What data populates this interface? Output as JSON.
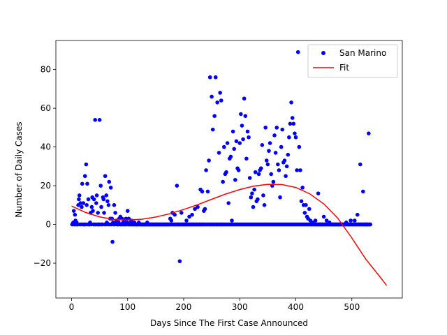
{
  "chart_data": {
    "type": "scatter",
    "xlabel": "Days Since The First Case Announced",
    "ylabel": "Number of Daily Cases",
    "xlim": [
      -28,
      590
    ],
    "ylim": [
      -38,
      95
    ],
    "xticks": [
      0,
      100,
      200,
      300,
      400,
      500
    ],
    "yticks": [
      -20,
      0,
      20,
      40,
      60,
      80
    ],
    "grid": false,
    "legend_position": "top-right",
    "series": [
      {
        "name": "San Marino",
        "kind": "scatter",
        "color": "#0000ff",
        "points": [
          [
            1,
            0
          ],
          [
            3,
            1
          ],
          [
            4,
            7
          ],
          [
            6,
            5
          ],
          [
            7,
            2
          ],
          [
            9,
            1
          ],
          [
            10,
            0
          ],
          [
            12,
            10
          ],
          [
            13,
            13
          ],
          [
            14,
            15
          ],
          [
            16,
            11
          ],
          [
            18,
            9
          ],
          [
            19,
            21
          ],
          [
            21,
            11
          ],
          [
            22,
            0
          ],
          [
            24,
            25
          ],
          [
            26,
            31
          ],
          [
            27,
            10
          ],
          [
            28,
            21
          ],
          [
            30,
            13
          ],
          [
            31,
            0
          ],
          [
            33,
            1
          ],
          [
            34,
            6
          ],
          [
            36,
            9
          ],
          [
            37,
            14
          ],
          [
            38,
            7
          ],
          [
            40,
            13
          ],
          [
            42,
            54
          ],
          [
            44,
            11
          ],
          [
            45,
            15
          ],
          [
            47,
            6
          ],
          [
            48,
            0
          ],
          [
            50,
            54
          ],
          [
            52,
            20
          ],
          [
            53,
            9
          ],
          [
            54,
            0
          ],
          [
            56,
            14
          ],
          [
            57,
            13
          ],
          [
            58,
            6
          ],
          [
            60,
            25
          ],
          [
            62,
            15
          ],
          [
            63,
            1
          ],
          [
            64,
            12
          ],
          [
            66,
            10
          ],
          [
            67,
            22
          ],
          [
            69,
            3
          ],
          [
            70,
            19
          ],
          [
            72,
            3
          ],
          [
            73,
            -9
          ],
          [
            74,
            1
          ],
          [
            76,
            10
          ],
          [
            78,
            6
          ],
          [
            79,
            1
          ],
          [
            80,
            2
          ],
          [
            82,
            0
          ],
          [
            84,
            1
          ],
          [
            85,
            3
          ],
          [
            87,
            4
          ],
          [
            88,
            0
          ],
          [
            90,
            3
          ],
          [
            92,
            1
          ],
          [
            93,
            0
          ],
          [
            95,
            2
          ],
          [
            97,
            3
          ],
          [
            99,
            1
          ],
          [
            100,
            7
          ],
          [
            102,
            3
          ],
          [
            104,
            0
          ],
          [
            105,
            1
          ],
          [
            107,
            2
          ],
          [
            110,
            0
          ],
          [
            112,
            1
          ],
          [
            115,
            0
          ],
          [
            120,
            1
          ],
          [
            125,
            0
          ],
          [
            130,
            0
          ],
          [
            135,
            1
          ],
          [
            140,
            0
          ],
          [
            150,
            0
          ],
          [
            160,
            0
          ],
          [
            170,
            0
          ],
          [
            176,
            3
          ],
          [
            178,
            2
          ],
          [
            180,
            6
          ],
          [
            184,
            5
          ],
          [
            188,
            20
          ],
          [
            190,
            0
          ],
          [
            193,
            -19
          ],
          [
            196,
            6
          ],
          [
            200,
            0
          ],
          [
            205,
            2
          ],
          [
            210,
            4
          ],
          [
            215,
            5
          ],
          [
            220,
            8
          ],
          [
            225,
            9
          ],
          [
            230,
            18
          ],
          [
            233,
            17
          ],
          [
            236,
            7
          ],
          [
            238,
            8
          ],
          [
            240,
            28
          ],
          [
            243,
            17
          ],
          [
            245,
            33
          ],
          [
            247,
            76
          ],
          [
            250,
            66
          ],
          [
            252,
            49
          ],
          [
            255,
            56
          ],
          [
            257,
            76
          ],
          [
            260,
            63
          ],
          [
            263,
            37
          ],
          [
            265,
            68
          ],
          [
            267,
            64
          ],
          [
            270,
            22
          ],
          [
            272,
            40
          ],
          [
            274,
            26
          ],
          [
            276,
            27
          ],
          [
            278,
            42
          ],
          [
            280,
            11
          ],
          [
            282,
            34
          ],
          [
            284,
            35
          ],
          [
            286,
            2
          ],
          [
            288,
            48
          ],
          [
            290,
            39
          ],
          [
            292,
            23
          ],
          [
            294,
            43
          ],
          [
            296,
            29
          ],
          [
            298,
            28
          ],
          [
            300,
            42
          ],
          [
            302,
            57
          ],
          [
            304,
            51
          ],
          [
            306,
            44
          ],
          [
            308,
            65
          ],
          [
            310,
            56
          ],
          [
            312,
            34
          ],
          [
            314,
            48
          ],
          [
            316,
            45
          ],
          [
            318,
            24
          ],
          [
            320,
            14
          ],
          [
            322,
            16
          ],
          [
            324,
            9
          ],
          [
            326,
            18
          ],
          [
            328,
            27
          ],
          [
            330,
            12
          ],
          [
            332,
            13
          ],
          [
            334,
            26
          ],
          [
            336,
            28
          ],
          [
            338,
            29
          ],
          [
            340,
            41
          ],
          [
            342,
            15
          ],
          [
            344,
            10
          ],
          [
            346,
            50
          ],
          [
            348,
            33
          ],
          [
            350,
            31
          ],
          [
            352,
            38
          ],
          [
            354,
            42
          ],
          [
            356,
            26
          ],
          [
            358,
            20
          ],
          [
            360,
            22
          ],
          [
            362,
            46
          ],
          [
            364,
            37
          ],
          [
            366,
            50
          ],
          [
            368,
            31
          ],
          [
            370,
            28
          ],
          [
            372,
            14
          ],
          [
            374,
            40
          ],
          [
            376,
            49
          ],
          [
            378,
            32
          ],
          [
            380,
            33
          ],
          [
            382,
            25
          ],
          [
            384,
            30
          ],
          [
            386,
            36
          ],
          [
            388,
            45
          ],
          [
            390,
            52
          ],
          [
            392,
            63
          ],
          [
            394,
            55
          ],
          [
            396,
            52
          ],
          [
            398,
            47
          ],
          [
            400,
            45
          ],
          [
            402,
            28
          ],
          [
            404,
            89
          ],
          [
            406,
            40
          ],
          [
            408,
            28
          ],
          [
            410,
            12
          ],
          [
            412,
            19
          ],
          [
            414,
            10
          ],
          [
            416,
            6
          ],
          [
            418,
            10
          ],
          [
            420,
            4
          ],
          [
            422,
            3
          ],
          [
            424,
            8
          ],
          [
            426,
            2
          ],
          [
            430,
            1
          ],
          [
            435,
            2
          ],
          [
            440,
            16
          ],
          [
            445,
            0
          ],
          [
            450,
            4
          ],
          [
            455,
            2
          ],
          [
            460,
            1
          ],
          [
            470,
            0
          ],
          [
            480,
            0
          ],
          [
            490,
            1
          ],
          [
            495,
            0
          ],
          [
            498,
            2
          ],
          [
            500,
            0
          ],
          [
            505,
            2
          ],
          [
            510,
            5
          ],
          [
            515,
            31
          ],
          [
            520,
            17
          ],
          [
            525,
            0
          ],
          [
            530,
            47
          ],
          [
            533,
            0
          ]
        ],
        "zero_days": [
          2,
          5,
          8,
          11,
          15,
          17,
          20,
          23,
          25,
          29,
          32,
          35,
          39,
          41,
          43,
          46,
          49,
          51,
          55,
          59,
          61,
          65,
          68,
          71,
          75,
          77,
          81,
          83,
          86,
          89,
          91,
          94,
          96,
          98,
          101,
          103,
          106,
          108,
          109,
          111,
          113,
          114,
          116,
          117,
          118,
          119,
          121,
          122,
          123,
          124,
          126,
          127,
          128,
          129,
          131,
          132,
          133,
          134,
          136,
          137,
          138,
          139,
          141,
          142,
          143,
          144,
          145,
          146,
          147,
          148,
          149,
          151,
          152,
          153,
          154,
          155,
          156,
          157,
          158,
          159,
          161,
          162,
          163,
          164,
          165,
          166,
          167,
          168,
          169,
          171,
          172,
          173,
          174,
          175,
          177,
          179,
          181,
          182,
          183,
          185,
          186,
          187,
          189,
          191,
          192,
          194,
          195,
          197,
          198,
          199,
          201,
          202,
          203,
          204,
          206,
          207,
          208,
          209,
          211,
          212,
          213,
          214,
          216,
          217,
          218,
          219,
          221,
          222,
          223,
          224,
          226,
          227,
          228,
          229,
          231,
          232,
          234,
          235,
          237,
          239,
          241,
          242,
          244,
          246,
          248,
          249,
          251,
          253,
          254,
          256,
          258,
          259,
          261,
          262,
          264,
          266,
          268,
          269,
          271,
          273,
          275,
          277,
          279,
          281,
          283,
          285,
          287,
          289,
          291,
          293,
          295,
          297,
          299,
          301,
          303,
          305,
          307,
          309,
          311,
          313,
          315,
          317,
          319,
          321,
          323,
          325,
          327,
          329,
          331,
          333,
          335,
          337,
          339,
          341,
          343,
          345,
          347,
          349,
          351,
          353,
          355,
          357,
          359,
          361,
          363,
          365,
          367,
          369,
          371,
          373,
          375,
          377,
          379,
          381,
          383,
          385,
          387,
          389,
          391,
          393,
          395,
          397,
          399,
          401,
          403,
          405,
          407,
          409,
          411,
          413,
          415,
          417,
          419,
          421,
          423,
          425,
          427,
          428,
          429,
          431,
          432,
          433,
          434,
          436,
          437,
          438,
          439,
          441,
          442,
          443,
          444,
          446,
          447,
          448,
          449,
          451,
          452,
          453,
          454,
          456,
          457,
          458,
          459,
          461,
          462,
          463,
          464,
          465,
          466,
          467,
          468,
          469,
          471,
          472,
          473,
          474,
          475,
          476,
          477,
          478,
          479,
          481,
          482,
          483,
          484,
          485,
          486,
          487,
          488,
          489,
          491,
          492,
          493,
          494,
          496,
          497,
          499,
          501,
          502,
          503,
          504,
          506,
          507,
          508,
          509,
          511,
          512,
          513,
          514,
          516,
          517,
          518,
          519,
          521,
          522,
          523,
          524,
          526,
          527,
          528,
          529,
          531,
          532
        ]
      },
      {
        "name": "Fit",
        "kind": "line",
        "color": "#ff0000",
        "x": [
          0,
          25,
          50,
          75,
          100,
          125,
          150,
          175,
          200,
          225,
          250,
          275,
          300,
          325,
          350,
          375,
          400,
          425,
          450,
          475,
          500,
          525,
          550,
          562
        ],
        "y": [
          9.5,
          6.2,
          3.9,
          2.6,
          2.3,
          2.7,
          3.8,
          5.5,
          7.7,
          10.2,
          13.0,
          15.7,
          18.0,
          19.8,
          20.7,
          20.6,
          19.1,
          15.8,
          10.6,
          3.2,
          -7.0,
          -18.0,
          -27.0,
          -31.5
        ]
      }
    ]
  }
}
